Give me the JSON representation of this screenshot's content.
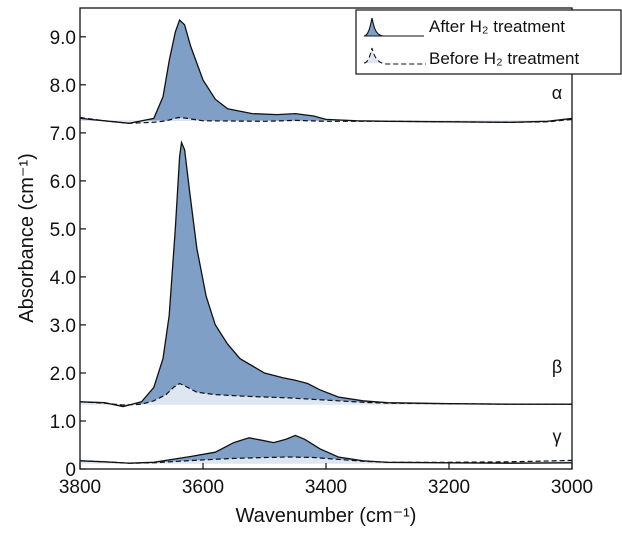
{
  "chart_data": {
    "type": "area",
    "title": "",
    "xlabel": "Wavenumber (cm⁻¹)",
    "ylabel": "Absorbance (cm⁻¹)",
    "xlim": [
      3800,
      3000
    ],
    "ylim": [
      0,
      9.6
    ],
    "x_reversed": true,
    "xticks": [
      "3800",
      "3600",
      "3400",
      "3200",
      "3000"
    ],
    "yticks": [
      "0",
      "1.0",
      "2.0",
      "3.0",
      "4.0",
      "5.0",
      "6.0",
      "7.0",
      "8.0",
      "9.0"
    ],
    "colors": {
      "after_fill": "#7f9fc7",
      "before_fill": "#dde6f1",
      "line": "#111111"
    },
    "legend": {
      "placement": "top-right",
      "entries": [
        "After H₂ treatment",
        "Before H₂ treatment"
      ]
    },
    "series": [
      {
        "label": "α",
        "baseline": 7.25,
        "after": [
          [
            3800,
            7.3
          ],
          [
            3760,
            7.25
          ],
          [
            3720,
            7.2
          ],
          [
            3680,
            7.3
          ],
          [
            3665,
            7.75
          ],
          [
            3655,
            8.5
          ],
          [
            3645,
            9.1
          ],
          [
            3638,
            9.35
          ],
          [
            3630,
            9.25
          ],
          [
            3620,
            8.8
          ],
          [
            3600,
            8.1
          ],
          [
            3580,
            7.7
          ],
          [
            3560,
            7.5
          ],
          [
            3520,
            7.4
          ],
          [
            3480,
            7.38
          ],
          [
            3450,
            7.4
          ],
          [
            3420,
            7.35
          ],
          [
            3400,
            7.28
          ],
          [
            3350,
            7.25
          ],
          [
            3300,
            7.24
          ],
          [
            3200,
            7.23
          ],
          [
            3100,
            7.22
          ],
          [
            3040,
            7.24
          ],
          [
            3000,
            7.3
          ]
        ],
        "before": [
          [
            3800,
            7.32
          ],
          [
            3760,
            7.25
          ],
          [
            3720,
            7.2
          ],
          [
            3680,
            7.22
          ],
          [
            3660,
            7.25
          ],
          [
            3640,
            7.32
          ],
          [
            3630,
            7.31
          ],
          [
            3600,
            7.25
          ],
          [
            3500,
            7.24
          ],
          [
            3450,
            7.26
          ],
          [
            3400,
            7.24
          ],
          [
            3300,
            7.24
          ],
          [
            3200,
            7.23
          ],
          [
            3100,
            7.22
          ],
          [
            3040,
            7.23
          ],
          [
            3000,
            7.28
          ]
        ]
      },
      {
        "label": "β",
        "baseline": 1.35,
        "after": [
          [
            3800,
            1.4
          ],
          [
            3760,
            1.38
          ],
          [
            3730,
            1.3
          ],
          [
            3700,
            1.4
          ],
          [
            3680,
            1.7
          ],
          [
            3665,
            2.3
          ],
          [
            3655,
            3.2
          ],
          [
            3645,
            5.0
          ],
          [
            3638,
            6.5
          ],
          [
            3635,
            6.8
          ],
          [
            3630,
            6.65
          ],
          [
            3622,
            5.8
          ],
          [
            3610,
            4.6
          ],
          [
            3595,
            3.6
          ],
          [
            3580,
            3.0
          ],
          [
            3560,
            2.6
          ],
          [
            3540,
            2.3
          ],
          [
            3500,
            2.0
          ],
          [
            3470,
            1.9
          ],
          [
            3450,
            1.85
          ],
          [
            3430,
            1.78
          ],
          [
            3410,
            1.65
          ],
          [
            3380,
            1.5
          ],
          [
            3340,
            1.42
          ],
          [
            3300,
            1.38
          ],
          [
            3200,
            1.36
          ],
          [
            3100,
            1.35
          ],
          [
            3000,
            1.35
          ]
        ],
        "before": [
          [
            3800,
            1.4
          ],
          [
            3760,
            1.37
          ],
          [
            3730,
            1.33
          ],
          [
            3700,
            1.35
          ],
          [
            3680,
            1.42
          ],
          [
            3660,
            1.55
          ],
          [
            3648,
            1.7
          ],
          [
            3638,
            1.78
          ],
          [
            3628,
            1.72
          ],
          [
            3610,
            1.6
          ],
          [
            3580,
            1.55
          ],
          [
            3540,
            1.52
          ],
          [
            3500,
            1.5
          ],
          [
            3460,
            1.48
          ],
          [
            3420,
            1.45
          ],
          [
            3380,
            1.42
          ],
          [
            3340,
            1.39
          ],
          [
            3300,
            1.37
          ],
          [
            3200,
            1.36
          ],
          [
            3100,
            1.35
          ],
          [
            3000,
            1.35
          ]
        ]
      },
      {
        "label": "γ",
        "baseline": 0.12,
        "after": [
          [
            3800,
            0.17
          ],
          [
            3760,
            0.15
          ],
          [
            3720,
            0.12
          ],
          [
            3680,
            0.14
          ],
          [
            3650,
            0.2
          ],
          [
            3620,
            0.26
          ],
          [
            3580,
            0.35
          ],
          [
            3550,
            0.55
          ],
          [
            3525,
            0.65
          ],
          [
            3505,
            0.6
          ],
          [
            3485,
            0.55
          ],
          [
            3465,
            0.62
          ],
          [
            3450,
            0.7
          ],
          [
            3435,
            0.62
          ],
          [
            3410,
            0.42
          ],
          [
            3380,
            0.25
          ],
          [
            3340,
            0.17
          ],
          [
            3300,
            0.14
          ],
          [
            3200,
            0.13
          ],
          [
            3100,
            0.12
          ],
          [
            3000,
            0.13
          ]
        ],
        "before": [
          [
            3800,
            0.17
          ],
          [
            3760,
            0.15
          ],
          [
            3720,
            0.12
          ],
          [
            3680,
            0.13
          ],
          [
            3640,
            0.16
          ],
          [
            3600,
            0.19
          ],
          [
            3550,
            0.22
          ],
          [
            3500,
            0.24
          ],
          [
            3460,
            0.25
          ],
          [
            3420,
            0.24
          ],
          [
            3380,
            0.2
          ],
          [
            3340,
            0.16
          ],
          [
            3300,
            0.14
          ],
          [
            3200,
            0.14
          ],
          [
            3100,
            0.15
          ],
          [
            3000,
            0.18
          ]
        ]
      }
    ]
  }
}
